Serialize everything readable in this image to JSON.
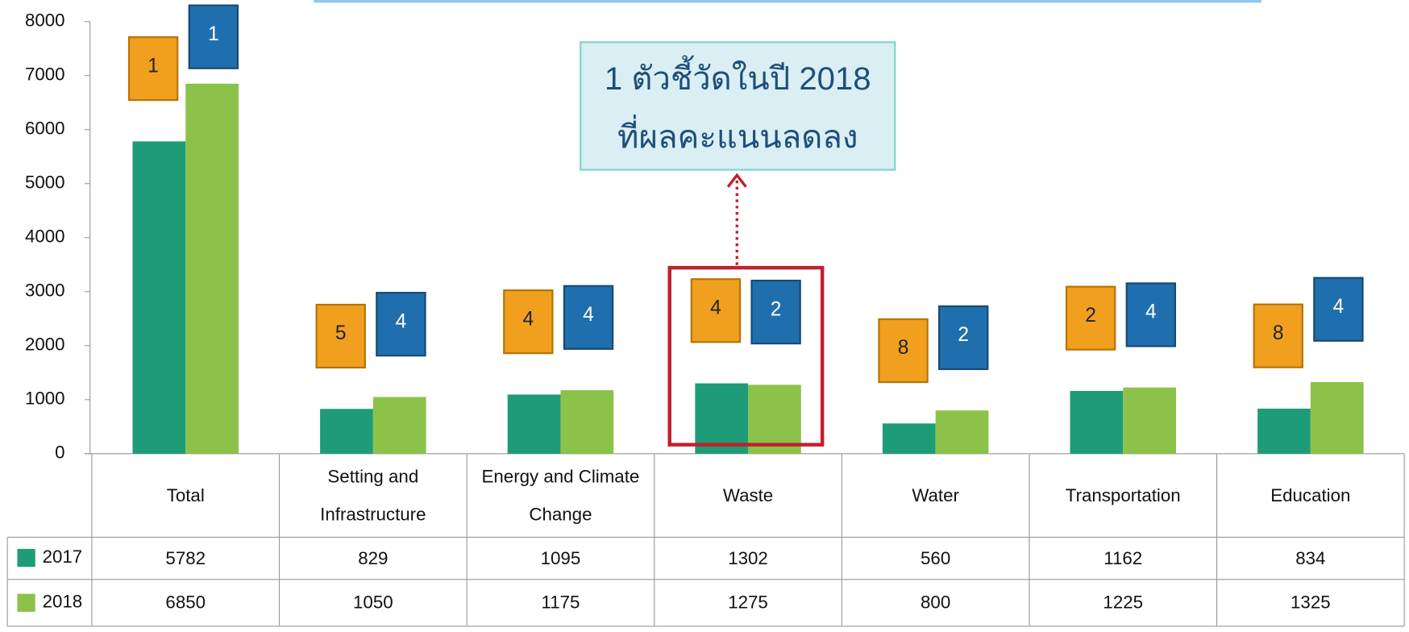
{
  "chart_data": {
    "type": "bar",
    "categories": [
      "Total",
      "Setting and Infrastructure",
      "Energy and Climate Change",
      "Waste",
      "Water",
      "Transportation",
      "Education"
    ],
    "series": [
      {
        "name": "2017",
        "color": "#1e9c78",
        "rank_color": "#f0a01e",
        "values": [
          5782,
          829,
          1095,
          1302,
          560,
          1162,
          834
        ],
        "ranks": [
          1,
          5,
          4,
          4,
          8,
          2,
          8
        ]
      },
      {
        "name": "2018",
        "color": "#8cc24a",
        "rank_color": "#1f6fae",
        "values": [
          6850,
          1050,
          1175,
          1275,
          800,
          1225,
          1325
        ],
        "ranks": [
          1,
          4,
          4,
          2,
          2,
          4,
          4
        ]
      }
    ],
    "ylim": [
      0,
      8000
    ],
    "yticks": [
      0,
      1000,
      2000,
      3000,
      4000,
      5000,
      6000,
      7000,
      8000
    ],
    "annotation": [
      "1 ตัวชี้วัดในปี 2018",
      "ที่ผลคะแนนลดลง"
    ],
    "highlight_category": 3
  }
}
